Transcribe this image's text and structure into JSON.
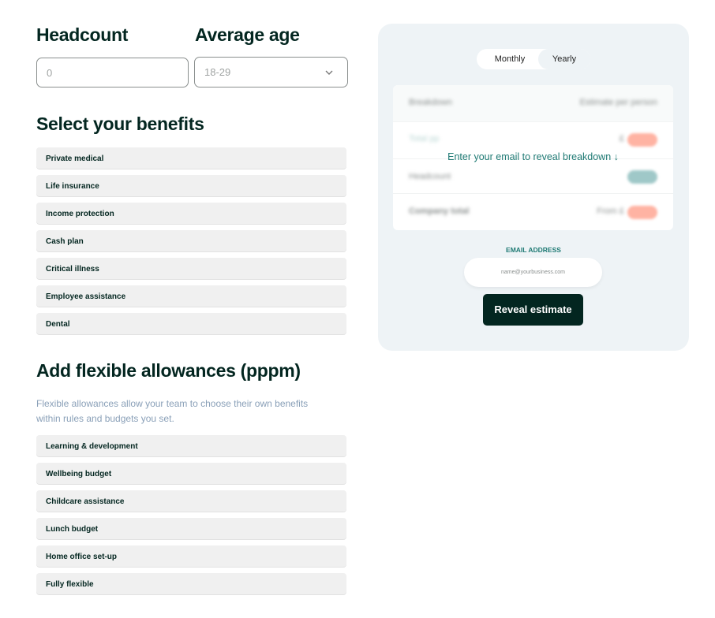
{
  "headcount": {
    "label": "Headcount",
    "value": "0"
  },
  "age": {
    "label": "Average age",
    "value": "18-29",
    "icon": "chevron-down-icon"
  },
  "benefits": {
    "title": "Select your benefits",
    "items": [
      "Private medical",
      "Life insurance",
      "Income protection",
      "Cash plan",
      "Critical illness",
      "Employee assistance",
      "Dental"
    ]
  },
  "allowances": {
    "title": "Add flexible allowances (pppm)",
    "description_line1": "Flexible allowances allow your team to choose their own benefits",
    "description_line2": "within rules and budgets you set.",
    "items": [
      "Learning & development",
      "Wellbeing budget",
      "Childcare assistance",
      "Lunch budget",
      "Home office set-up",
      "Fully flexible"
    ]
  },
  "estimate": {
    "toggle": {
      "monthly": "Monthly",
      "yearly": "Yearly",
      "selected": "Yearly"
    },
    "table": {
      "col1": "Breakdown",
      "col2": "Estimate per person",
      "rows": [
        {
          "label": "Total pp",
          "prefix": "£"
        },
        {
          "label": "Headcount",
          "prefix": ""
        },
        {
          "label": "Company total",
          "prefix": "From £"
        }
      ]
    },
    "overlay": "Enter your email to reveal breakdown ↓",
    "email_label": "EMAIL ADDRESS",
    "email_placeholder": "name@yourbusiness.com",
    "button": "Reveal estimate",
    "colors": {
      "accent": "#1f7a74",
      "dark": "#032620",
      "pill_salmon": "#ffb3a3",
      "pill_teal": "#9fc8c8"
    }
  }
}
